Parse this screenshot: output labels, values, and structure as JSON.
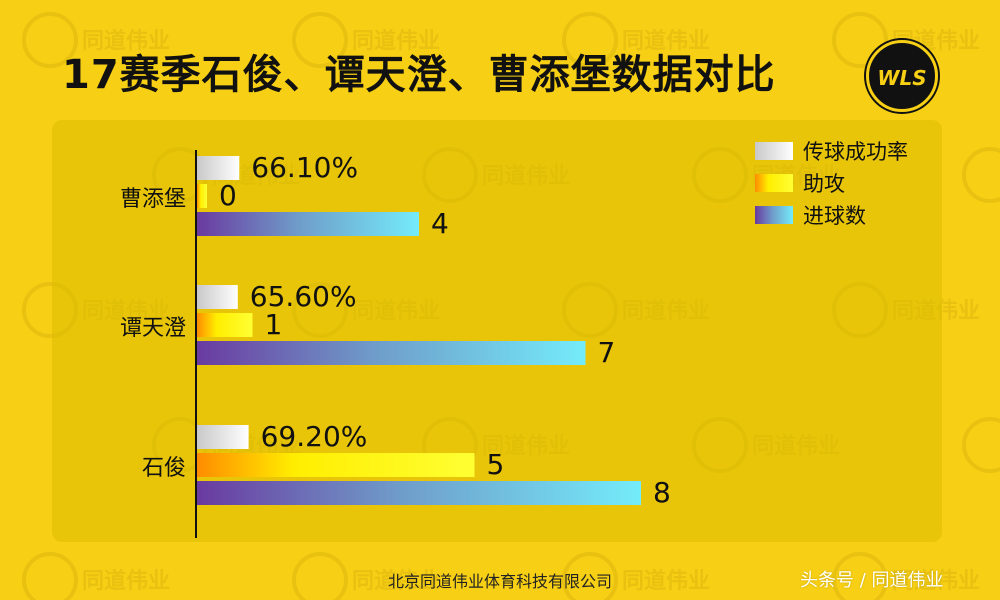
{
  "title": "17赛季石俊、谭天澄、曹添堡数据对比",
  "logo_text": "WLS",
  "watermark_text": "同道伟业",
  "footer": "北京同道伟业体育科技有限公司",
  "credit": "头条号 / 同道伟业",
  "chart_data": {
    "type": "bar",
    "orientation": "horizontal",
    "title": "17赛季石俊、谭天澄、曹添堡数据对比",
    "categories": [
      "曹添堡",
      "谭天澄",
      "石俊"
    ],
    "series": [
      {
        "name": "传球成功率",
        "values": [
          66.1,
          65.6,
          69.2
        ],
        "labels": [
          "66.10%",
          "65.60%",
          "69.20%"
        ],
        "color": "#ffffff"
      },
      {
        "name": "助攻",
        "values": [
          0,
          1,
          5
        ],
        "labels": [
          "0",
          "1",
          "5"
        ],
        "color": "#ffee00"
      },
      {
        "name": "进球数",
        "values": [
          4,
          7,
          8
        ],
        "labels": [
          "4",
          "7",
          "8"
        ],
        "color": "#6fe3f2"
      }
    ],
    "legend_position": "top-right",
    "grid": false
  }
}
